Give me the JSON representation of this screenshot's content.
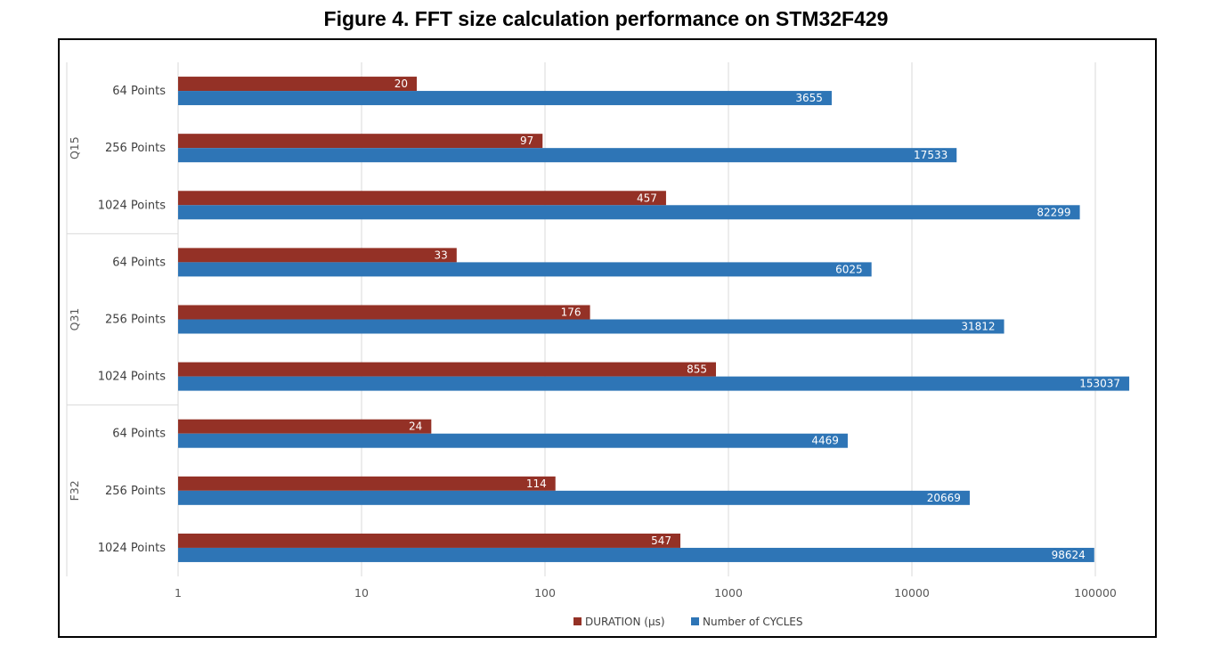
{
  "figure_title": "Figure 4. FFT size calculation performance on STM32F429",
  "chart_data": {
    "type": "bar",
    "orientation": "horizontal",
    "x_scale": "log",
    "xlim": [
      1,
      100000
    ],
    "x_ticks": [
      "1",
      "10",
      "100",
      "1000",
      "10000",
      "100000"
    ],
    "grid": true,
    "legend_position": "bottom",
    "groups": [
      {
        "name": "Q15",
        "categories": [
          "64 Points",
          "256 Points",
          "1024 Points"
        ]
      },
      {
        "name": "Q31",
        "categories": [
          "64 Points",
          "256 Points",
          "1024 Points"
        ]
      },
      {
        "name": "F32",
        "categories": [
          "64 Points",
          "256 Points",
          "1024 Points"
        ]
      }
    ],
    "series": [
      {
        "name": "DURATION (µs)",
        "color": "#943126",
        "values": [
          20,
          97,
          457,
          33,
          176,
          855,
          24,
          114,
          547
        ]
      },
      {
        "name": "Number of CYCLES",
        "color": "#2e75b6",
        "values": [
          3655,
          17533,
          82299,
          6025,
          31812,
          153037,
          4469,
          20669,
          98624
        ]
      }
    ]
  }
}
